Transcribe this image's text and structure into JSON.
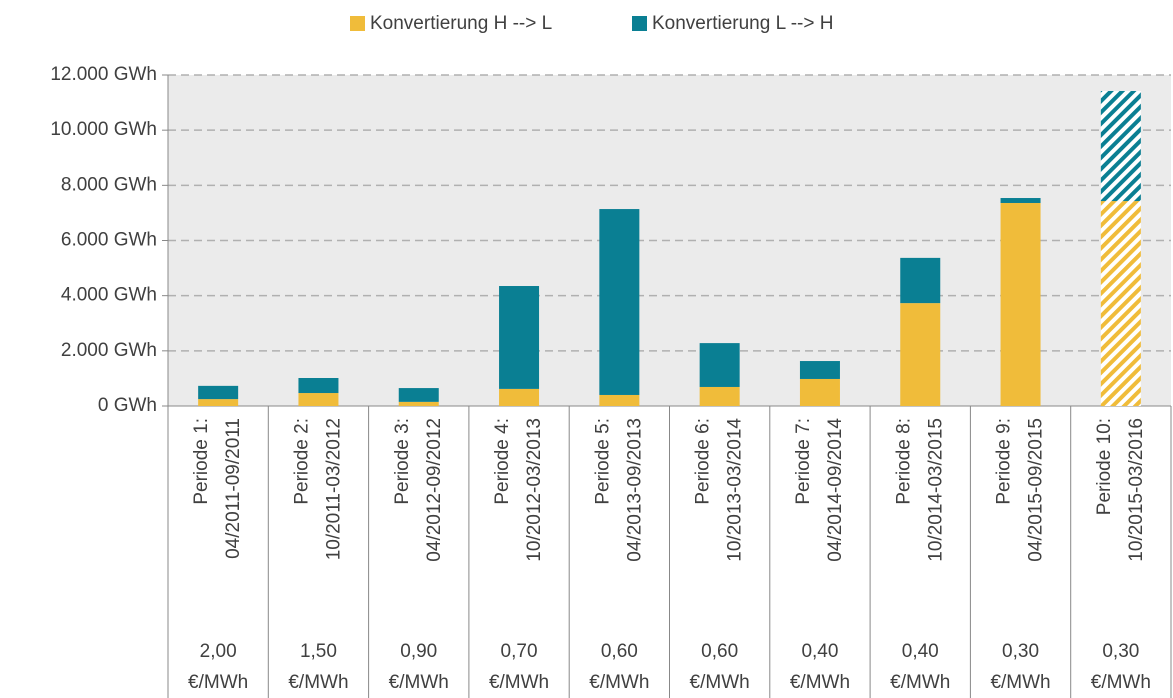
{
  "chart_data": {
    "type": "bar",
    "stacked": true,
    "categories": [
      [
        "Periode 1:",
        "04/2011-09/2011"
      ],
      [
        "Periode 2:",
        "10/2011-03/2012"
      ],
      [
        "Periode 3:",
        "04/2012-09/2012"
      ],
      [
        "Periode 4:",
        "10/2012-03/2013"
      ],
      [
        "Periode 5:",
        "04/2013-09/2013"
      ],
      [
        "Periode 6:",
        "10/2013-03/2014"
      ],
      [
        "Periode 7:",
        "04/2014-09/2014"
      ],
      [
        "Periode 8:",
        "10/2014-03/2015"
      ],
      [
        "Periode 9:",
        "04/2015-09/2015"
      ],
      [
        "Periode 10:",
        "10/2015-03/2016"
      ]
    ],
    "price_row": [
      "2,00",
      "1,50",
      "0,90",
      "0,70",
      "0,60",
      "0,60",
      "0,40",
      "0,40",
      "0,30",
      "0,30"
    ],
    "price_unit": "€/MWh",
    "series": [
      {
        "name": "Konvertierung H --> L",
        "color": "#f0bc3a",
        "values": [
          250,
          470,
          150,
          620,
          400,
          690,
          980,
          3730,
          7360,
          7430
        ]
      },
      {
        "name": "Konvertierung L --> H",
        "color": "#0a7f93",
        "values": [
          480,
          545,
          500,
          3730,
          6740,
          1590,
          650,
          1640,
          180,
          3990
        ]
      }
    ],
    "hatched": [
      false,
      false,
      false,
      false,
      false,
      false,
      false,
      false,
      false,
      true
    ],
    "ylim": [
      0,
      12000
    ],
    "yticks": [
      {
        "value": 0,
        "label": "0 GWh"
      },
      {
        "value": 2000,
        "label": "2.000 GWh"
      },
      {
        "value": 4000,
        "label": "4.000 GWh"
      },
      {
        "value": 6000,
        "label": "6.000 GWh"
      },
      {
        "value": 8000,
        "label": "8.000 GWh"
      },
      {
        "value": 10000,
        "label": "10.000 GWh"
      },
      {
        "value": 12000,
        "label": "12.000 GWh"
      }
    ],
    "grid": true,
    "legend": "top"
  }
}
